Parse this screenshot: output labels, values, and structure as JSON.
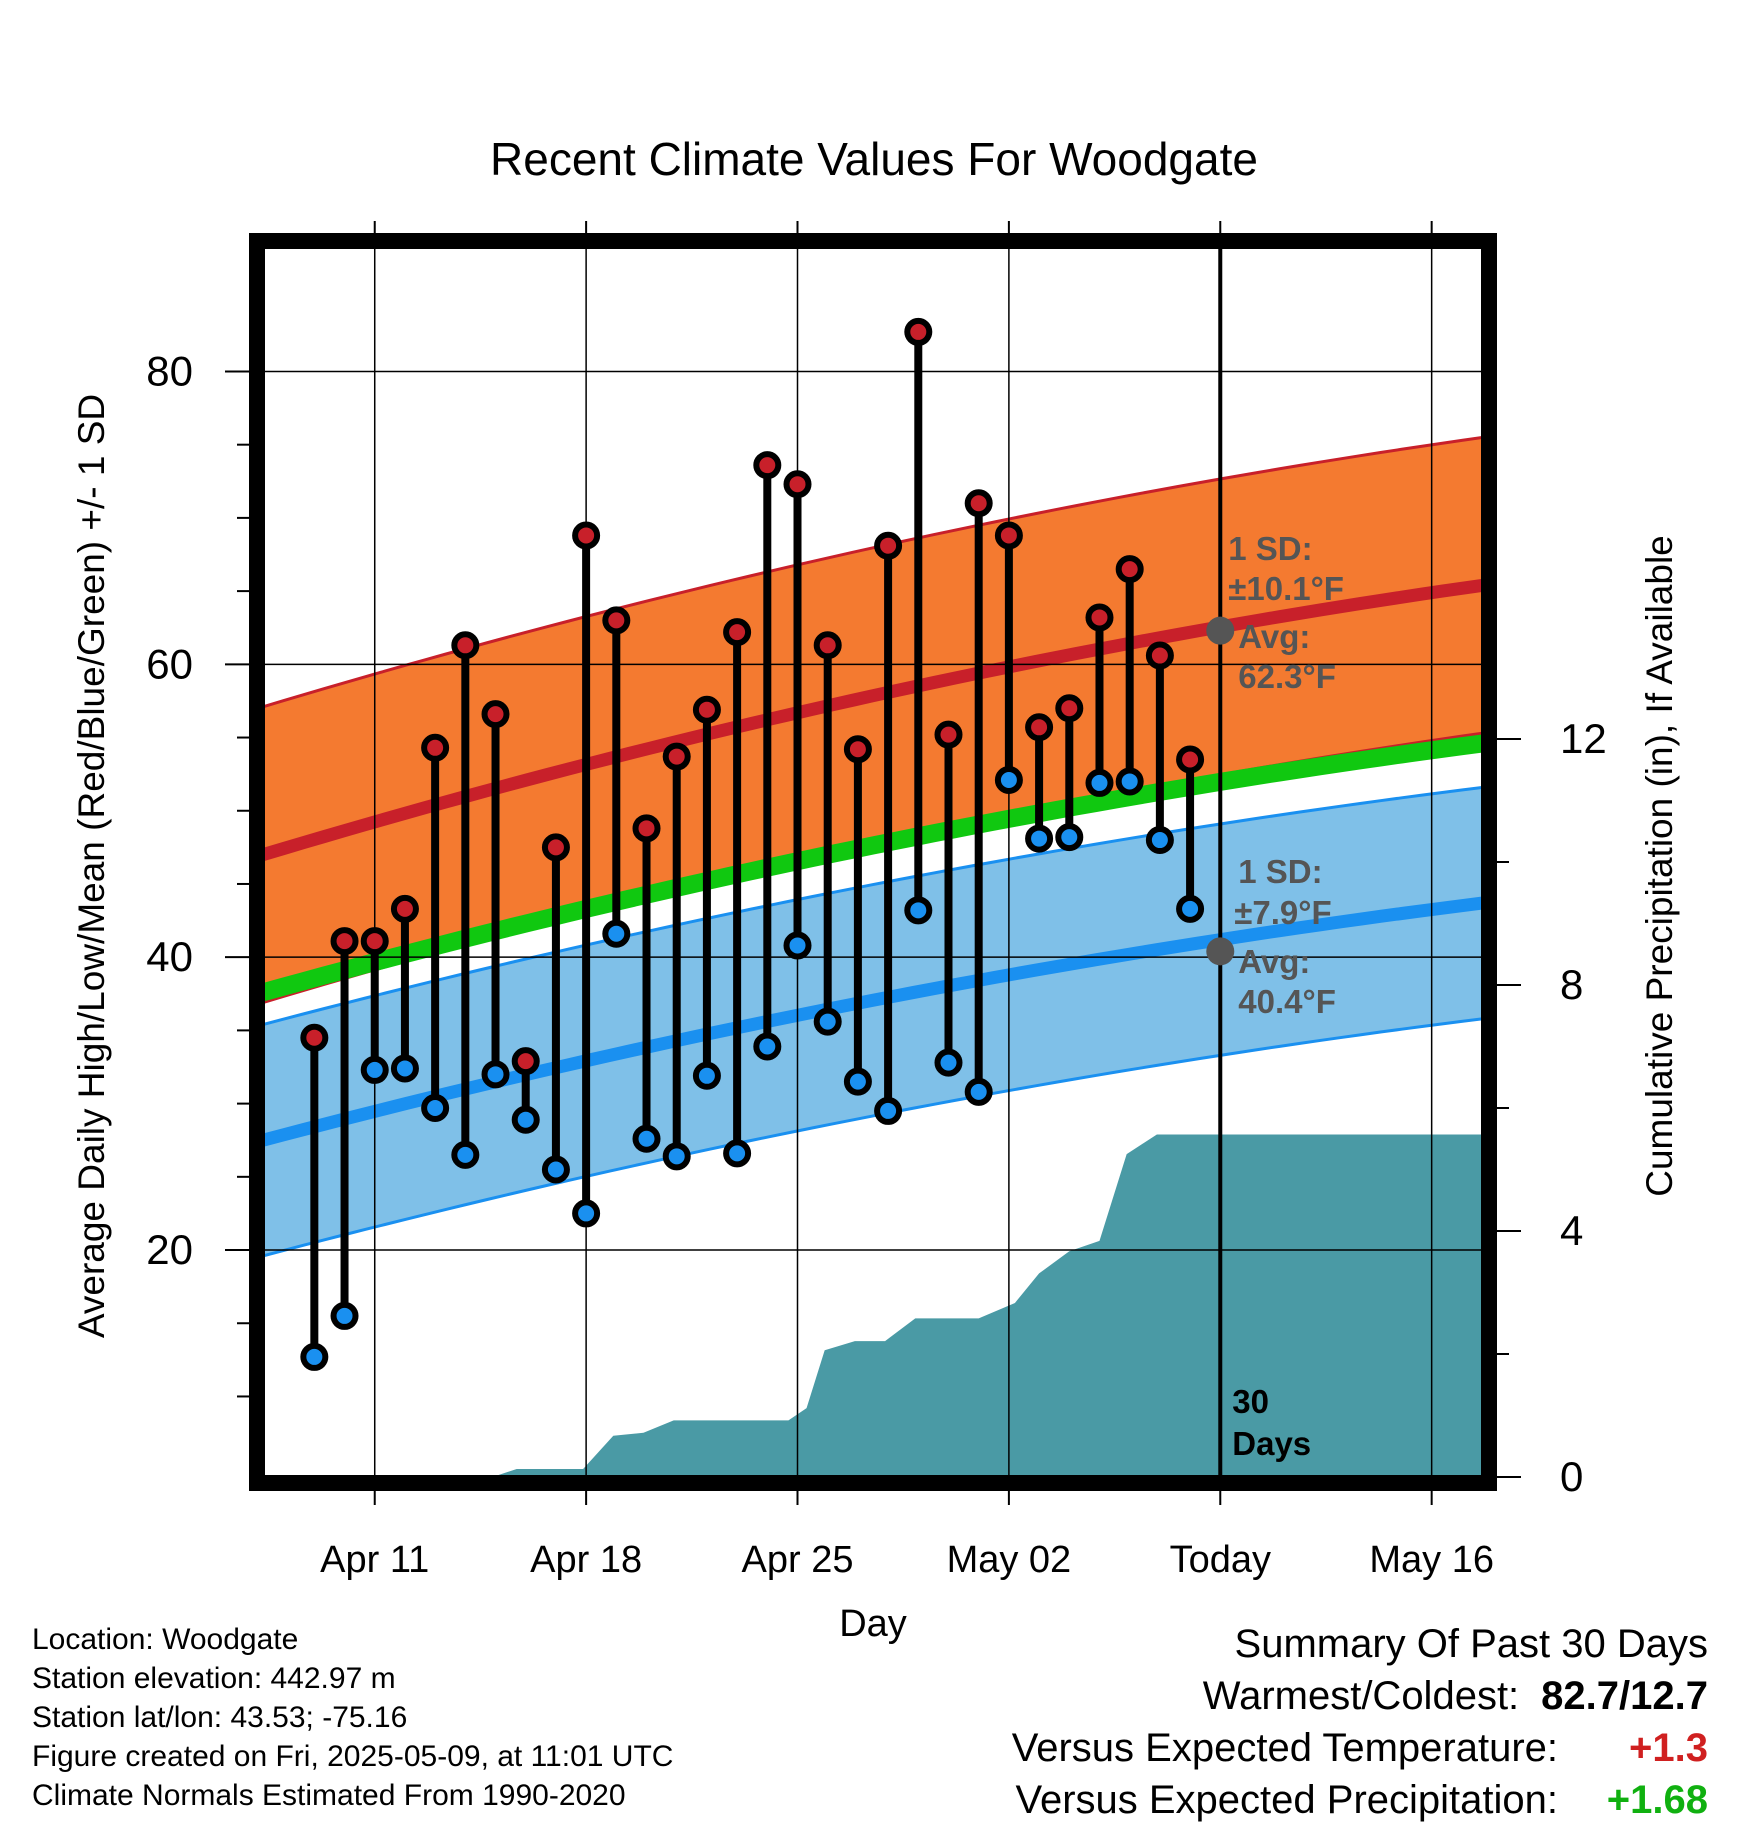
{
  "chart_data": {
    "type": "line",
    "title": "Recent Climate Values For Woodgate",
    "xlabel": "Day",
    "ylabel_left": "Average Daily High/Low/Mean (Red/Blue/Green) +/- 1 SD",
    "ylabel_right": "Cumulative Precipitation (in), If Available",
    "x_ticks": [
      "Apr 11",
      "Apr 18",
      "Apr 25",
      "May 02",
      "Today",
      "May 16"
    ],
    "x_tick_days": [
      3,
      10,
      17,
      24,
      31,
      38
    ],
    "xlim_days": [
      -0.7,
      39.7
    ],
    "y_left_ticks": [
      20,
      40,
      60,
      80
    ],
    "ylim_left": [
      4.5,
      88.5
    ],
    "y_right_ticks": [
      0,
      4,
      8,
      12
    ],
    "ylim_right": [
      0,
      20
    ],
    "grid": true,
    "days": [
      1,
      2,
      3,
      4,
      5,
      6,
      7,
      8,
      9,
      10,
      11,
      12,
      13,
      14,
      15,
      16,
      17,
      18,
      19,
      20,
      21,
      22,
      23,
      24,
      25,
      26,
      27,
      28,
      29,
      30
    ],
    "series": [
      {
        "name": "High",
        "color": "#c8202a",
        "values": [
          34.5,
          41.1,
          41.1,
          43.3,
          54.3,
          61.3,
          56.6,
          32.9,
          47.5,
          68.8,
          63.0,
          48.8,
          53.7,
          56.9,
          62.2,
          73.6,
          72.3,
          61.3,
          54.2,
          68.1,
          82.7,
          55.2,
          71.0,
          68.8,
          55.7,
          57.0,
          63.2,
          66.5,
          60.6,
          53.5
        ]
      },
      {
        "name": "Low",
        "color": "#1a90f0",
        "values": [
          12.7,
          15.5,
          32.3,
          32.4,
          29.7,
          26.5,
          32.0,
          28.9,
          25.5,
          22.5,
          41.6,
          27.6,
          26.4,
          31.9,
          26.6,
          33.9,
          40.8,
          35.6,
          31.5,
          29.5,
          43.2,
          32.8,
          30.8,
          52.1,
          48.1,
          48.2,
          51.9,
          52.0,
          48.0,
          43.3
        ]
      },
      {
        "name": "Normal High",
        "color": "#c8202a",
        "x": [
          -0.7,
          39.7
        ],
        "values": [
          47.0,
          65.4
        ],
        "sd": 10.1
      },
      {
        "name": "Normal Low",
        "color": "#1a90f0",
        "x": [
          -0.7,
          39.7
        ],
        "values": [
          27.5,
          43.7
        ],
        "sd": 7.9
      },
      {
        "name": "Normal Mean",
        "color": "#10c810",
        "x": [
          -0.7,
          39.7
        ],
        "values": [
          37.6,
          54.6
        ]
      },
      {
        "name": "Cumulative Precipitation",
        "color": "#4a9aa5",
        "axis": "right",
        "x": [
          -0.7,
          6.9,
          7.7,
          9.9,
          10.9,
          11.9,
          12.9,
          16.7,
          17.3,
          17.9,
          18.9,
          19.9,
          20.9,
          22.1,
          23.0,
          24.2,
          25.0,
          26.0,
          27.0,
          27.9,
          28.9,
          29.0,
          39.7
        ],
        "values": [
          0,
          0,
          0.13,
          0.13,
          0.67,
          0.72,
          0.92,
          0.92,
          1.12,
          2.06,
          2.21,
          2.21,
          2.58,
          2.58,
          2.58,
          2.83,
          3.31,
          3.67,
          3.84,
          5.25,
          5.57,
          5.57,
          5.57
        ]
      }
    ],
    "annotations": {
      "high_sd": "1 SD:",
      "high_sd_val": "±10.1°F",
      "high_avg": "Avg:",
      "high_avg_val": "62.3°F",
      "low_sd": "1 SD:",
      "low_sd_val": "±7.9°F",
      "low_avg": "Avg:",
      "low_avg_val": "40.4°F",
      "window": "30",
      "window2": "Days"
    },
    "today_day": 31,
    "today_high_avg": 62.3,
    "today_low_avg": 40.4,
    "colors": {
      "high_band": "#f47a30",
      "low_band": "#7fc0e8",
      "precip": "#4a9aa5",
      "high_line": "#c8202a",
      "low_line": "#1a90f0",
      "mean_line": "#10c810",
      "high_dot": "#c8202a",
      "low_dot": "#1a90f0",
      "annotation": "#555555"
    }
  },
  "footer": {
    "location": "Location: Woodgate",
    "elevation": "Station elevation: 442.97 m",
    "latlon": "Station lat/lon: 43.53; -75.16",
    "created": "Figure created on Fri, 2025-05-09, at 11:01 UTC",
    "normals": "Climate Normals Estimated From 1990-2020"
  },
  "summary": {
    "heading": "Summary Of Past 30 Days",
    "warm_cold_label": "Warmest/Coldest:",
    "warm_cold_value": "82.7/12.7",
    "temp_label": "Versus Expected Temperature:",
    "temp_value": "+1.3",
    "temp_color": "#d02020",
    "precip_label": "Versus Expected Precipitation:",
    "precip_value": "+1.68",
    "precip_color": "#10b010"
  }
}
